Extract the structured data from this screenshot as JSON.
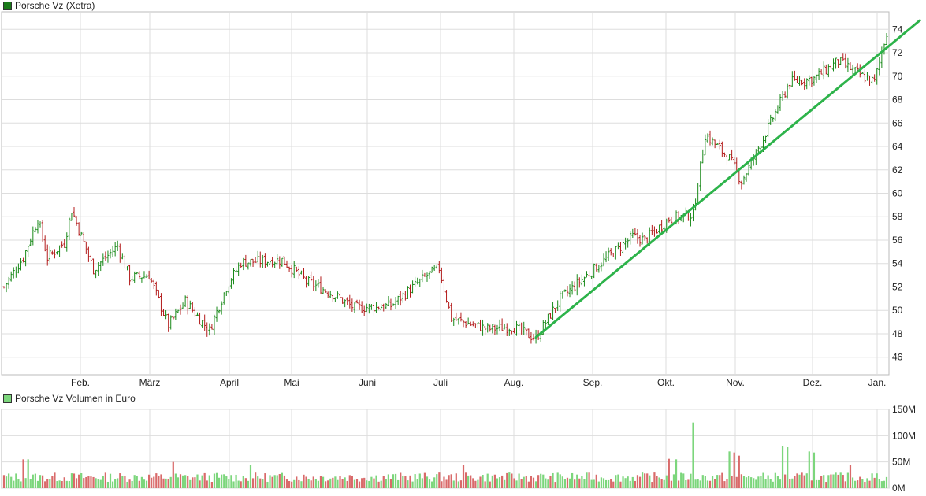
{
  "legend": {
    "price_label": "Porsche Vz (Xetra)",
    "volume_label": "Porsche Vz Volumen in Euro"
  },
  "colors": {
    "up": "#1a8a1a",
    "down": "#b31b1b",
    "trendline": "#2db34a",
    "vol_up": "#7cd67c",
    "vol_down": "#d96a6a",
    "grid": "#dddddd",
    "legend_price": "#1a7a1a",
    "legend_volume": "#7cd67c"
  },
  "chart_data": [
    {
      "type": "line",
      "title": "Porsche Vz (Xetra)",
      "ylim": [
        44.5,
        75.5
      ],
      "y_ticks": [
        46,
        48,
        50,
        52,
        54,
        56,
        58,
        60,
        62,
        64,
        66,
        68,
        70,
        72,
        74
      ],
      "x_months": [
        "Feb.",
        "März",
        "April",
        "Mai",
        "Juni",
        "Juli",
        "Aug.",
        "Sep.",
        "Okt.",
        "Nov.",
        "Dez.",
        "Jan."
      ],
      "grid": true,
      "anchors": [
        [
          0,
          52.0
        ],
        [
          8,
          54.5
        ],
        [
          14,
          57.8
        ],
        [
          18,
          54.5
        ],
        [
          25,
          55.8
        ],
        [
          28,
          58.6
        ],
        [
          37,
          53.5
        ],
        [
          47,
          55.5
        ],
        [
          52,
          52.8
        ],
        [
          60,
          53.0
        ],
        [
          68,
          48.7
        ],
        [
          75,
          50.8
        ],
        [
          82,
          49.0
        ],
        [
          85,
          48.3
        ],
        [
          92,
          52.0
        ],
        [
          98,
          54.1
        ],
        [
          115,
          54.3
        ],
        [
          125,
          52.5
        ],
        [
          135,
          51.5
        ],
        [
          145,
          50.2
        ],
        [
          160,
          50.4
        ],
        [
          175,
          53.0
        ],
        [
          180,
          53.6
        ],
        [
          185,
          49.3
        ],
        [
          200,
          48.4
        ],
        [
          210,
          48.6
        ],
        [
          220,
          47.6
        ],
        [
          230,
          51.0
        ],
        [
          250,
          54.6
        ],
        [
          260,
          56.3
        ],
        [
          265,
          56.0
        ],
        [
          275,
          57.8
        ],
        [
          285,
          58.2
        ],
        [
          290,
          65.0
        ],
        [
          300,
          63.0
        ],
        [
          305,
          61.0
        ],
        [
          310,
          63.0
        ],
        [
          325,
          69.5
        ],
        [
          335,
          69.8
        ],
        [
          345,
          71.3
        ],
        [
          355,
          70.0
        ],
        [
          360,
          69.5
        ],
        [
          365,
          73.8
        ]
      ],
      "trendline": {
        "from": [
          220,
          47.7
        ],
        "to": [
          369,
          73.1
        ]
      },
      "n_bars": 366
    },
    {
      "type": "bar",
      "title": "Porsche Vz Volumen in Euro",
      "ylim": [
        0,
        150
      ],
      "y_ticks": [
        0,
        50,
        100,
        150
      ],
      "y_tick_labels": [
        "0M",
        "50M",
        "100M",
        "150M"
      ],
      "unit": "M",
      "grid": true,
      "base": 20,
      "spikes": [
        [
          8,
          55
        ],
        [
          10,
          55
        ],
        [
          70,
          50
        ],
        [
          102,
          45
        ],
        [
          190,
          45
        ],
        [
          275,
          56
        ],
        [
          278,
          55
        ],
        [
          285,
          125
        ],
        [
          300,
          70
        ],
        [
          302,
          68
        ],
        [
          304,
          62
        ],
        [
          322,
          80
        ],
        [
          324,
          78
        ],
        [
          333,
          70
        ],
        [
          335,
          68
        ],
        [
          350,
          45
        ]
      ]
    }
  ]
}
